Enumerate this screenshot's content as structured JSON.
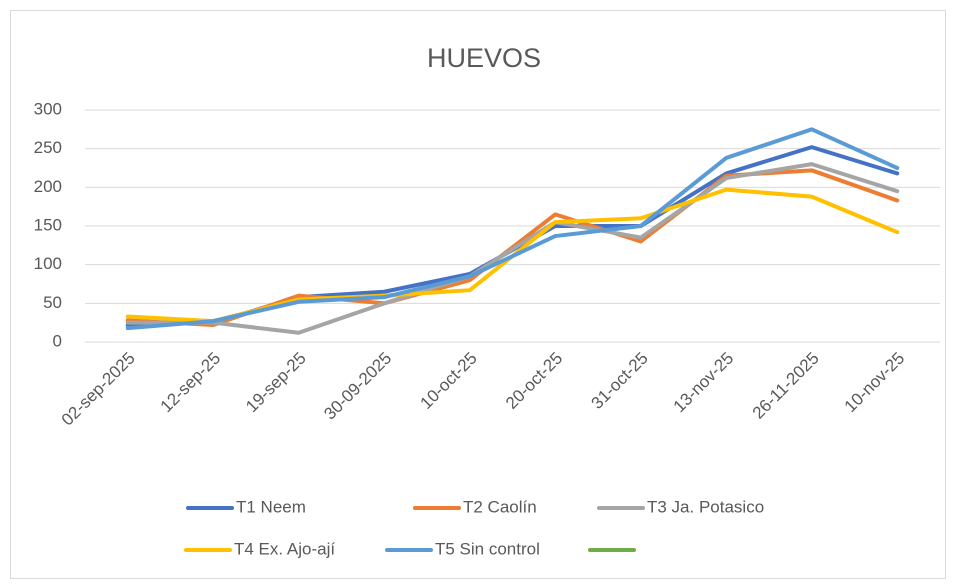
{
  "chart_data": {
    "type": "line",
    "title": "HUEVOS",
    "categories": [
      "02-sep-2025",
      "12-sep-25",
      "19-sep-25",
      "30-09-2025",
      "10-oct-25",
      "20-oct-25",
      "31-oct-25",
      "13-nov-25",
      "26-11-2025",
      "10-nov-25"
    ],
    "series": [
      {
        "name": "T1 Neem",
        "color": "#4472c4",
        "values": [
          22,
          25,
          58,
          65,
          88,
          150,
          150,
          218,
          252,
          218
        ]
      },
      {
        "name": "T2 Caolín",
        "color": "#ed7d31",
        "values": [
          28,
          22,
          60,
          50,
          80,
          165,
          130,
          215,
          222,
          183
        ]
      },
      {
        "name": "T3 Ja. Potasico",
        "color": "#a5a5a5",
        "values": [
          25,
          25,
          12,
          50,
          85,
          155,
          135,
          212,
          230,
          195
        ]
      },
      {
        "name": "T4 Ex. Ajo-ají",
        "color": "#ffc000",
        "values": [
          33,
          27,
          55,
          60,
          67,
          155,
          160,
          197,
          188,
          142
        ]
      },
      {
        "name": "T5 Sin control",
        "color": "#5b9bd5",
        "values": [
          18,
          27,
          52,
          58,
          85,
          137,
          150,
          238,
          275,
          225
        ]
      },
      {
        "color": "#70ad47",
        "values": [
          null,
          null,
          null,
          null,
          null,
          null,
          null,
          null,
          null,
          null
        ]
      }
    ],
    "ylim": [
      0,
      300
    ],
    "yticks": [
      0,
      50,
      100,
      150,
      200,
      250,
      300
    ],
    "grid": true,
    "legend": "bottom"
  }
}
